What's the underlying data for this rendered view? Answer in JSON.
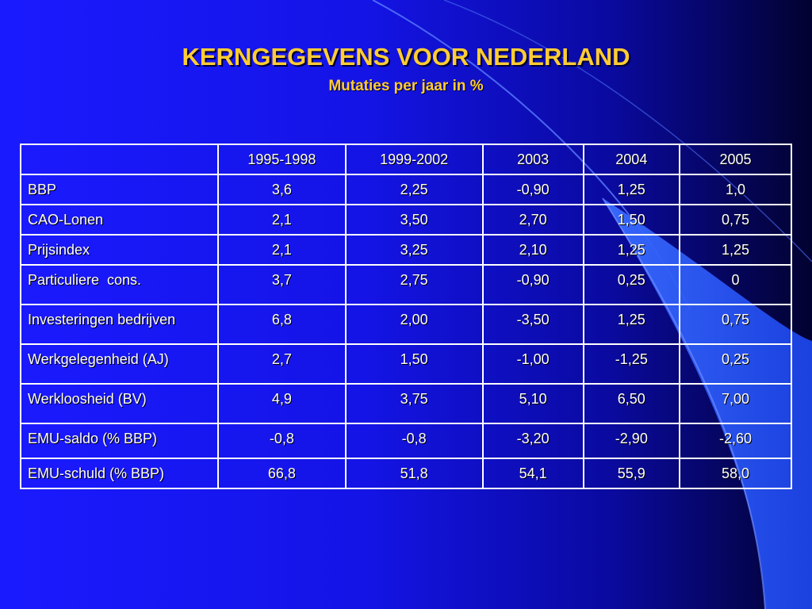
{
  "title": "KERNGEGEVENS VOOR NEDERLAND",
  "subtitle": "Mutaties per jaar in %",
  "colors": {
    "title": "#ffcc33",
    "background": "#1414e6",
    "table_text": "#ffffff"
  },
  "table": {
    "headers": [
      "",
      "1995-1998",
      "1999-2002",
      "2003",
      "2004",
      "2005"
    ],
    "rows": [
      {
        "label": "BBP",
        "values": [
          "3,6",
          "2,25",
          "-0,90",
          "1,25",
          "1,0"
        ]
      },
      {
        "label": "CAO-Lonen",
        "values": [
          "2,1",
          "3,50",
          "2,70",
          "1,50",
          "0,75"
        ]
      },
      {
        "label": "Prijsindex",
        "values": [
          "2,1",
          "3,25",
          "2,10",
          "1,25",
          "1,25"
        ]
      },
      {
        "label": "Particuliere  cons.",
        "values": [
          "3,7",
          "2,75",
          "-0,90",
          "0,25",
          "0"
        ]
      },
      {
        "label": "Investeringen bedrijven",
        "values": [
          "6,8",
          "2,00",
          "-3,50",
          "1,25",
          "0,75"
        ]
      },
      {
        "label": "Werkgelegenheid (AJ)",
        "values": [
          "2,7",
          "1,50",
          "-1,00",
          "-1,25",
          "0,25"
        ]
      },
      {
        "label": "Werkloosheid (BV)",
        "values": [
          "4,9",
          "3,75",
          "5,10",
          "6,50",
          "7,00"
        ]
      },
      {
        "label": "EMU-saldo (% BBP)",
        "values": [
          "-0,8",
          "-0,8",
          "-3,20",
          "-2,90",
          "-2,60"
        ]
      },
      {
        "label": "EMU-schuld (% BBP)",
        "values": [
          "66,8",
          "51,8",
          "54,1",
          "55,9",
          "58,0"
        ]
      }
    ]
  }
}
